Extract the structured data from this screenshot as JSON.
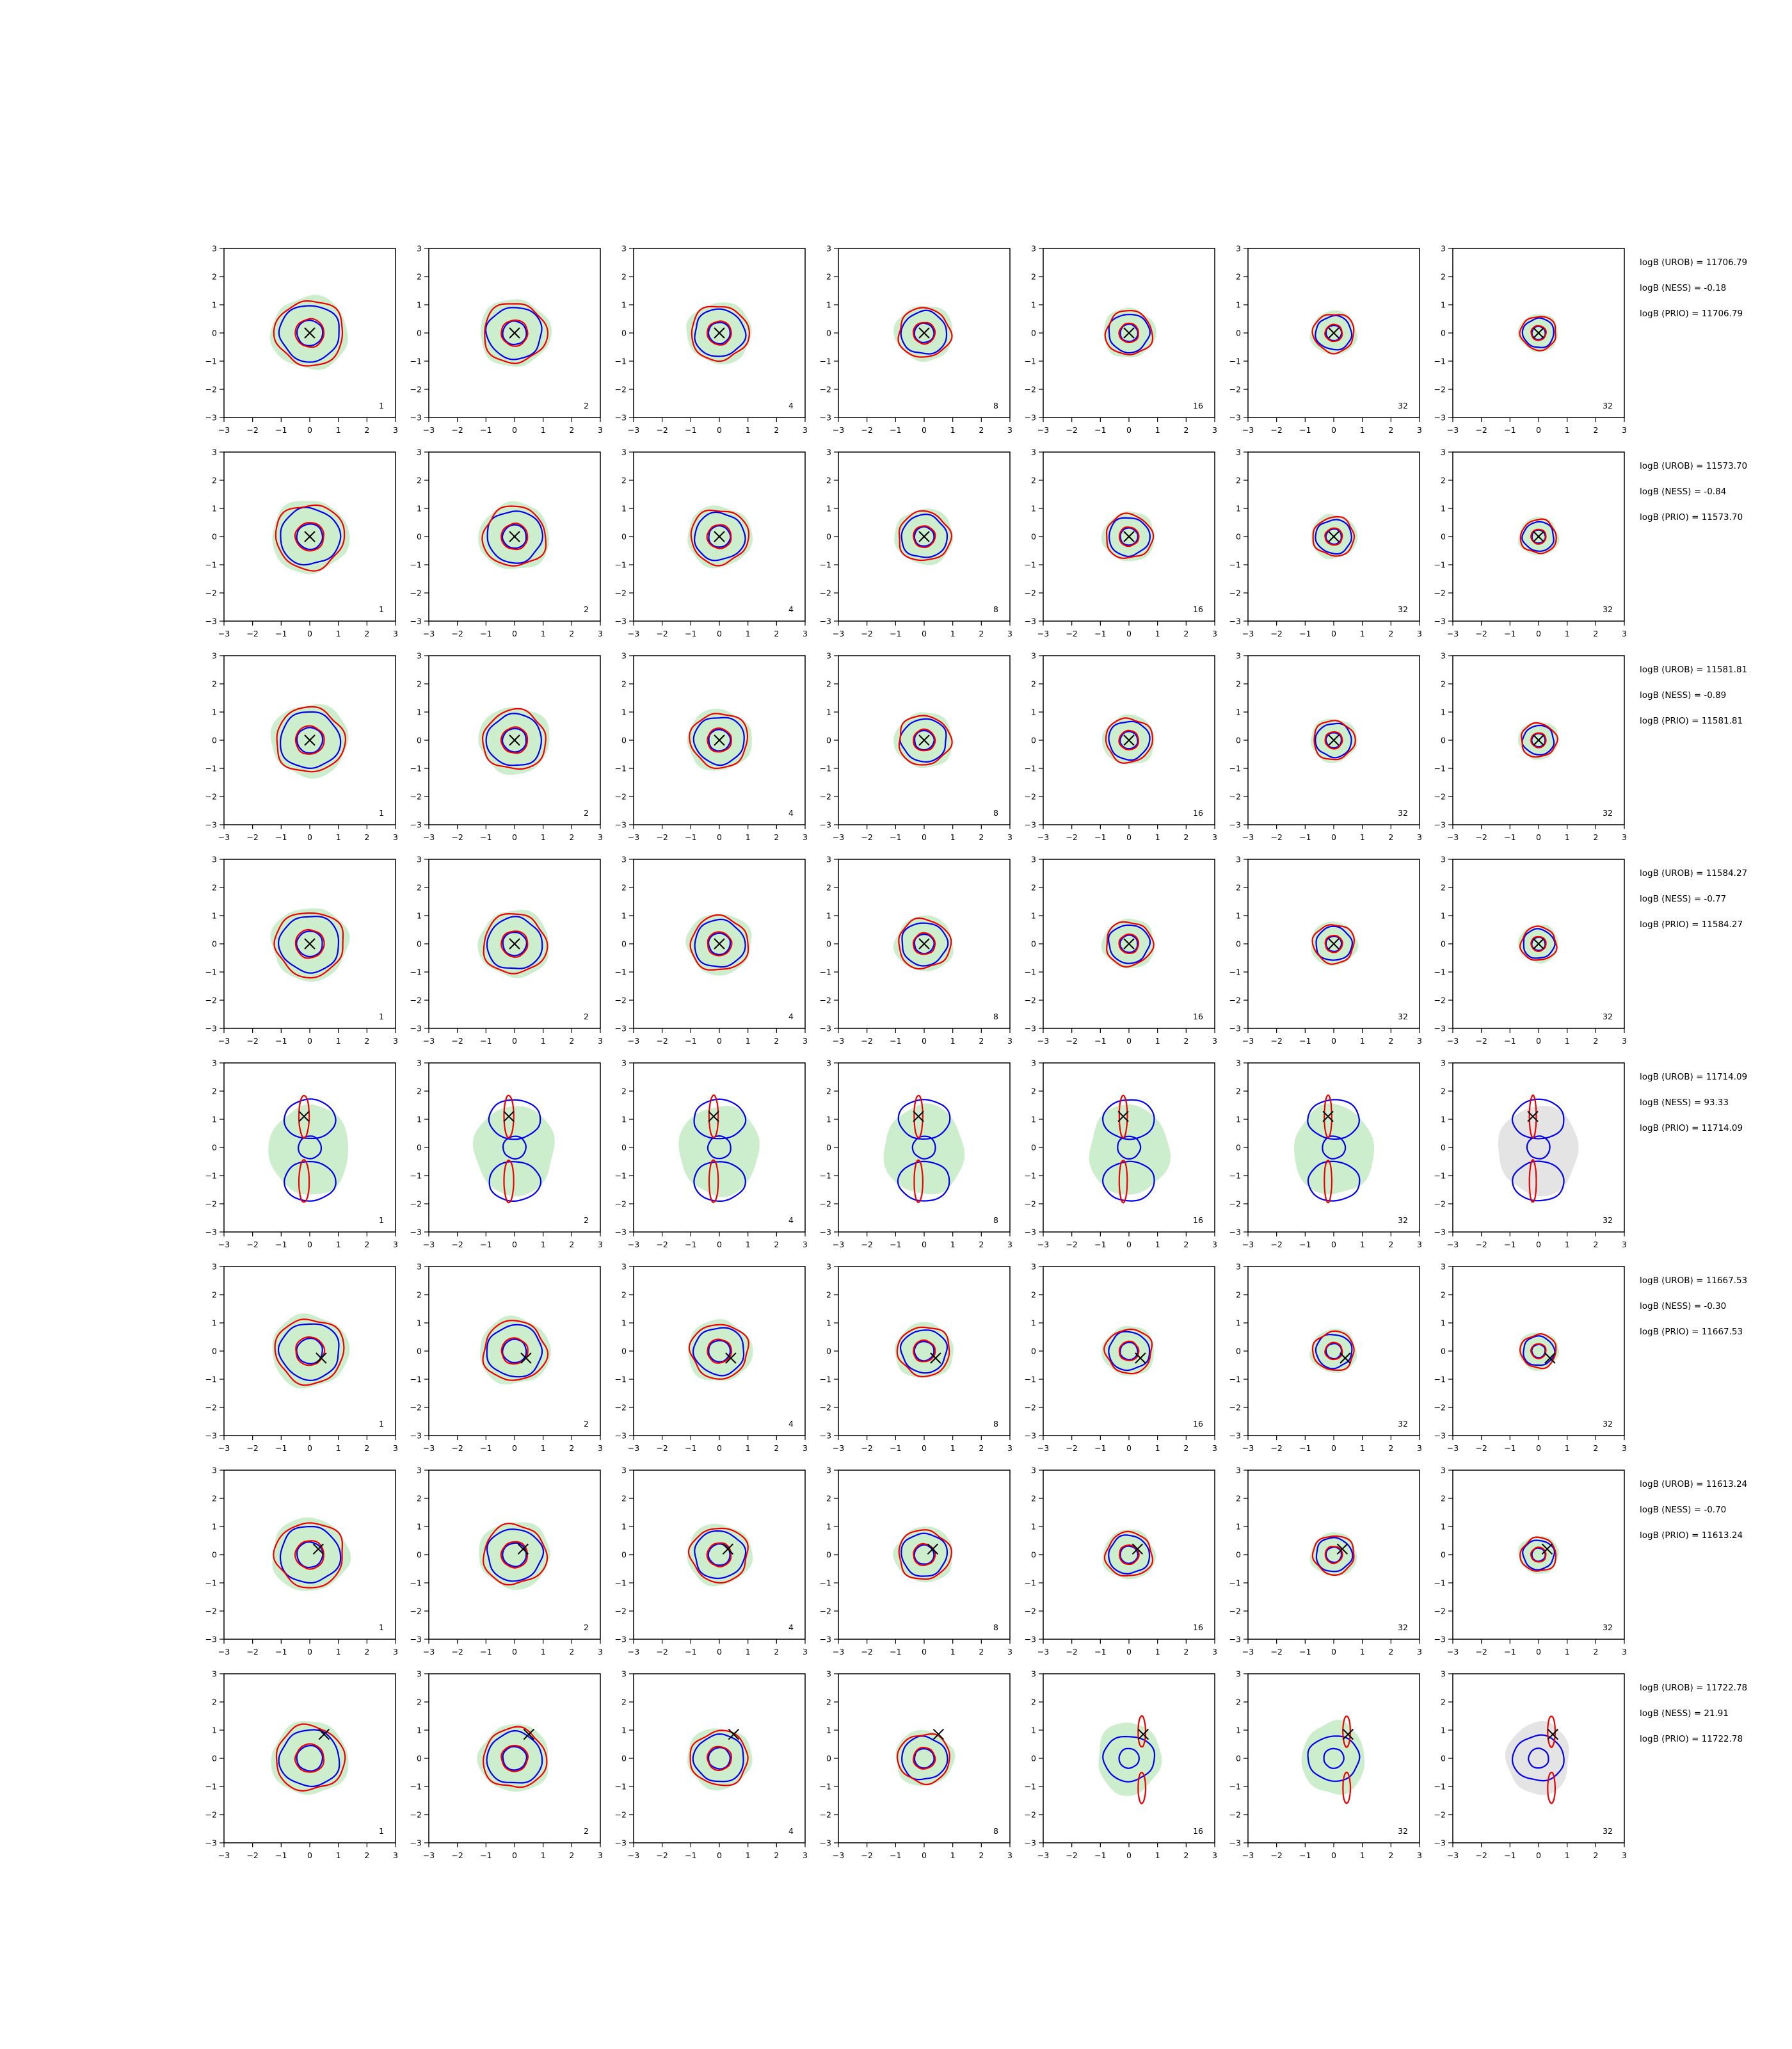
{
  "figure": {
    "background": "#ffffff"
  },
  "colors": {
    "blue": "#0000ee",
    "red": "#ee0000",
    "green_fill": "#cdeecd",
    "grey_fill": "#e4e4e4",
    "marker": "#000000",
    "axis": "#000000"
  },
  "icons": {
    "marker": "x-marker"
  },
  "chart_data": {
    "type": "contour-grid",
    "rows": 8,
    "cols": 7,
    "xlim": [
      -3,
      3
    ],
    "ylim": [
      -3,
      3
    ],
    "xticks": [
      "−3",
      "−2",
      "−1",
      "0",
      "1",
      "2",
      "3"
    ],
    "yticks": [
      "3",
      "2",
      "1",
      "0",
      "−1",
      "−2",
      "−3"
    ],
    "panel_labels": [
      "1",
      "2",
      "4",
      "8",
      "16",
      "32",
      "32"
    ],
    "row_markers": [
      {
        "x": 0.0,
        "y": 0.0
      },
      {
        "x": 0.0,
        "y": 0.0
      },
      {
        "x": 0.0,
        "y": 0.0
      },
      {
        "x": 0.0,
        "y": 0.0
      },
      {
        "x": -0.2,
        "y": 1.1
      },
      {
        "x": 0.4,
        "y": -0.25
      },
      {
        "x": 0.3,
        "y": 0.2
      },
      {
        "x": 0.5,
        "y": 0.85
      }
    ],
    "row_annotations": [
      [
        "logB (UROB) = 11706.79",
        "logB (NESS) = -0.18",
        "logB (PRIO) = 11706.79"
      ],
      [
        "logB (UROB) = 11573.70",
        "logB (NESS) = -0.84",
        "logB (PRIO) = 11573.70"
      ],
      [
        "logB (UROB) = 11581.81",
        "logB (NESS) = -0.89",
        "logB (PRIO) = 11581.81"
      ],
      [
        "logB (UROB) = 11584.27",
        "logB (NESS) = -0.77",
        "logB (PRIO) = 11584.27"
      ],
      [
        "logB (UROB) = 11714.09",
        "logB (NESS) = 93.33",
        "logB (PRIO) = 11714.09"
      ],
      [
        "logB (UROB) = 11667.53",
        "logB (NESS) = -0.30",
        "logB (PRIO) = 11667.53"
      ],
      [
        "logB (UROB) = 11613.24",
        "logB (NESS) = -0.70",
        "logB (PRIO) = 11613.24"
      ],
      [
        "logB (UROB) = 11722.78",
        "logB (NESS) = 21.91",
        "logB (PRIO) = 11722.78"
      ]
    ]
  }
}
